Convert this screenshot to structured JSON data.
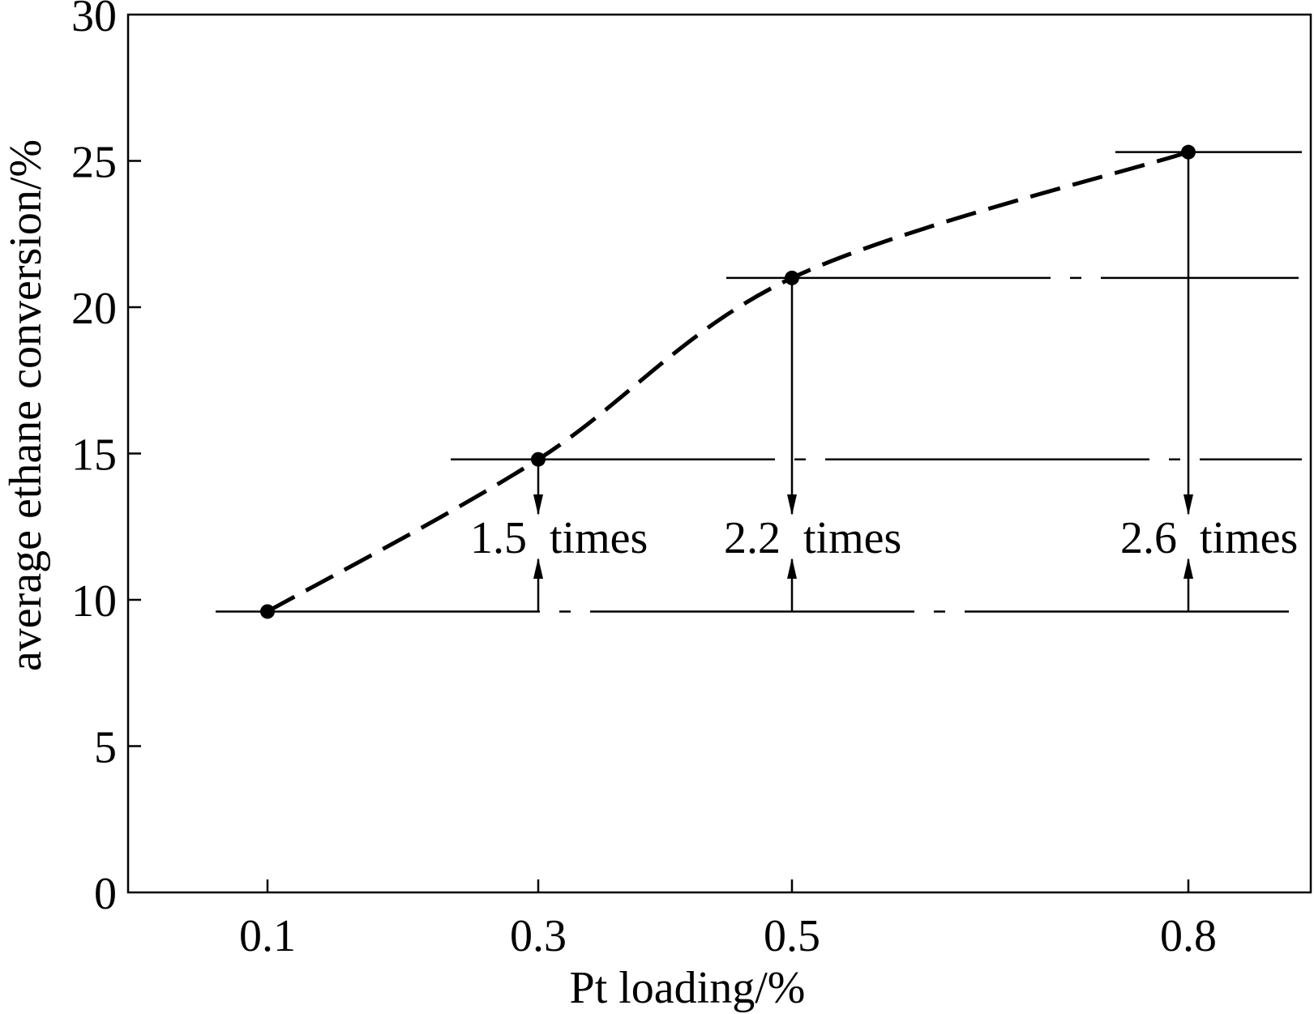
{
  "chart_data": {
    "type": "line",
    "title": "",
    "xlabel": "Pt loading/%",
    "ylabel": "average ethane conversion/%",
    "x_tick_labels": [
      "0.1",
      "0.3",
      "0.5",
      "0.8"
    ],
    "y_ticks": [
      0,
      5,
      10,
      15,
      20,
      25,
      30
    ],
    "ylim": [
      0,
      30
    ],
    "grid": false,
    "legend": "none",
    "series": [
      {
        "line_style": "dashed",
        "marker": "filled-circle",
        "x": [
          "0.1",
          "0.3",
          "0.5",
          "0.8"
        ],
        "y": [
          9.6,
          14.8,
          21.0,
          25.3
        ]
      }
    ],
    "reference_lines": [
      {
        "y": 9.6,
        "style": "dash-dot"
      },
      {
        "y": 14.8,
        "style": "dash-dot"
      },
      {
        "y": 21.0,
        "style": "dash-dot"
      },
      {
        "y": 25.3,
        "style": "dash-dot"
      }
    ],
    "annotations": [
      {
        "x": "0.3",
        "ratio": "1.5",
        "word": "times",
        "from_y": 9.6,
        "to_y": 14.8
      },
      {
        "x": "0.5",
        "ratio": "2.2",
        "word": "times",
        "from_y": 9.6,
        "to_y": 21.0
      },
      {
        "x": "0.8",
        "ratio": "2.6",
        "word": "times",
        "from_y": 9.6,
        "to_y": 25.3
      }
    ],
    "colors": {
      "line": "#000000",
      "background": "#ffffff"
    }
  }
}
